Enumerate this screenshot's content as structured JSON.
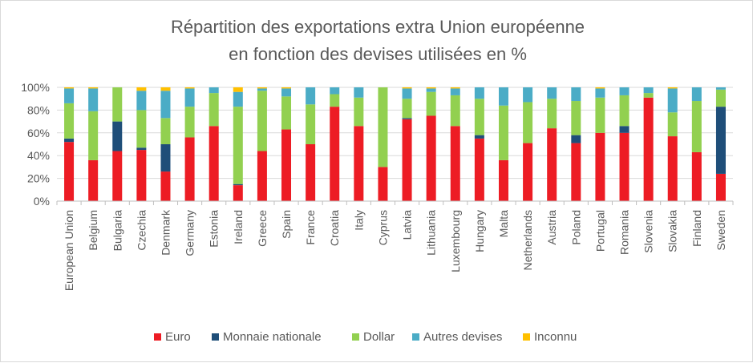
{
  "chart_data": {
    "type": "bar",
    "stacked": true,
    "percent": true,
    "title": [
      "Répartition des exportations extra Union européenne",
      "en fonction des devises utilisées en %"
    ],
    "xlabel": "",
    "ylabel": "",
    "ylim": [
      0,
      100
    ],
    "yticks": [
      "0%",
      "20%",
      "40%",
      "60%",
      "80%",
      "100%"
    ],
    "grid": true,
    "legend_position": "bottom",
    "categories": [
      "European Union",
      "Belgium",
      "Bulgaria",
      "Czechia",
      "Denmark",
      "Germany",
      "Estonia",
      "Ireland",
      "Greece",
      "Spain",
      "France",
      "Croatia",
      "Italy",
      "Cyprus",
      "Latvia",
      "Lithuania",
      "Luxembourg",
      "Hungary",
      "Malta",
      "Netherlands",
      "Austria",
      "Poland",
      "Portugal",
      "Romania",
      "Slovenia",
      "Slovakia",
      "Finland",
      "Sweden"
    ],
    "series": [
      {
        "name": "Euro",
        "color": "#ed1c24",
        "values": [
          52,
          36,
          44,
          45,
          26,
          56,
          66,
          14,
          44,
          63,
          50,
          83,
          66,
          30,
          72,
          75,
          66,
          55,
          36,
          51,
          64,
          51,
          60,
          60,
          91,
          57,
          43,
          24
        ]
      },
      {
        "name": "Monnaie nationale",
        "color": "#1f4e79",
        "values": [
          3,
          0,
          26,
          2,
          24,
          0,
          0,
          1,
          0,
          0,
          0,
          0,
          0,
          0,
          1,
          0,
          0,
          3,
          0,
          0,
          0,
          7,
          0,
          6,
          0,
          0,
          0,
          59
        ]
      },
      {
        "name": "Dollar",
        "color": "#92d050",
        "values": [
          31,
          43,
          30,
          33,
          23,
          27,
          29,
          68,
          53,
          29,
          35,
          11,
          25,
          70,
          17,
          21,
          27,
          32,
          48,
          36,
          26,
          30,
          31,
          27,
          4,
          21,
          45,
          15
        ]
      },
      {
        "name": "Autres devises",
        "color": "#4bacc6",
        "values": [
          13,
          20,
          0,
          17,
          24,
          16,
          5,
          13,
          2,
          7,
          15,
          6,
          9,
          0,
          9,
          3,
          6,
          10,
          16,
          13,
          10,
          12,
          8,
          7,
          5,
          21,
          12,
          2
        ]
      },
      {
        "name": "Inconnu",
        "color": "#ffc000",
        "values": [
          1,
          1,
          0,
          3,
          3,
          1,
          0,
          4,
          1,
          1,
          0,
          0,
          0,
          0,
          1,
          1,
          1,
          0,
          0,
          0,
          0,
          0,
          1,
          0,
          0,
          1,
          0,
          0
        ]
      }
    ]
  }
}
